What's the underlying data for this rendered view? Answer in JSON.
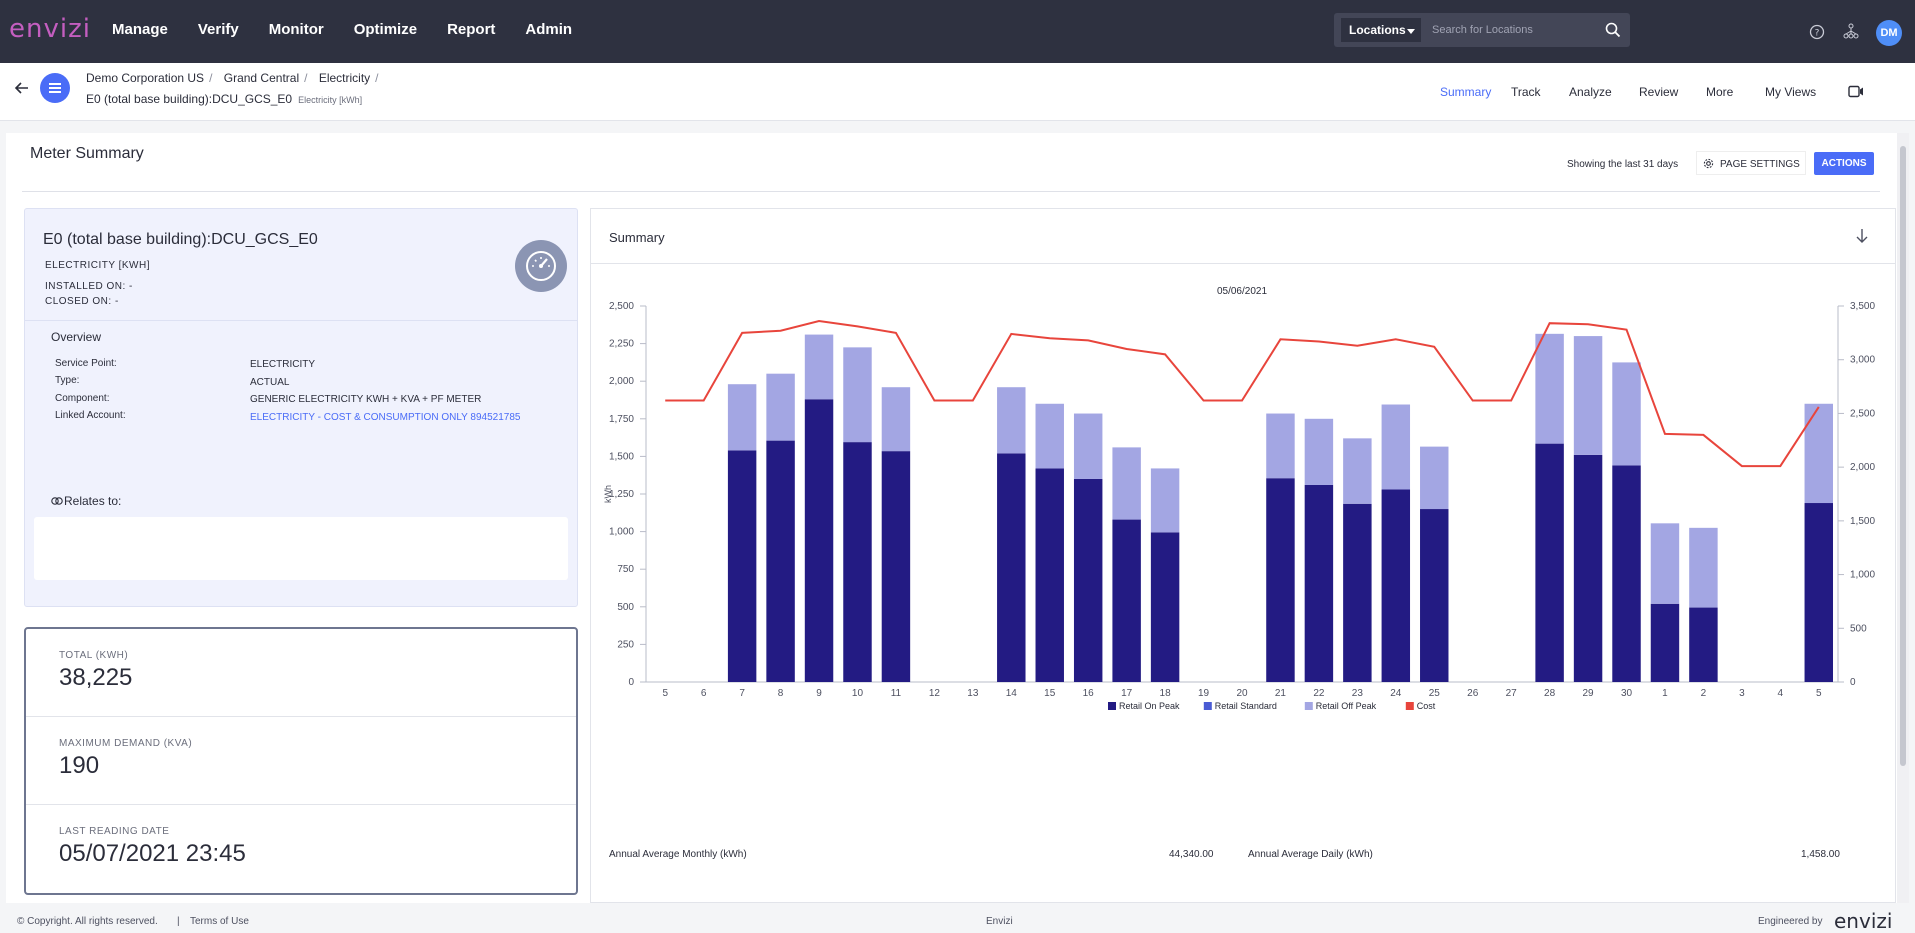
{
  "app": {
    "logo": "envizi",
    "nav": [
      "Manage",
      "Verify",
      "Monitor",
      "Optimize",
      "Report",
      "Admin"
    ],
    "location_select": "Locations",
    "search_placeholder": "Search for Locations",
    "avatar": "DM"
  },
  "breadcrumb": {
    "items": [
      "Demo Corporation US",
      "Grand Central",
      "Electricity"
    ],
    "meter": "E0 (total base building):DCU_GCS_E0",
    "meter_unit": "Electricity [kWh]"
  },
  "tabs": [
    "Summary",
    "Track",
    "Analyze",
    "Review",
    "More",
    "My Views"
  ],
  "page": {
    "title": "Meter Summary",
    "showing": "Showing the last 31 days",
    "page_settings": "PAGE SETTINGS",
    "actions": "ACTIONS"
  },
  "meter_card": {
    "title": "E0 (total base building):DCU_GCS_E0",
    "type": "ELECTRICITY [KWH]",
    "installed": "INSTALLED ON: -",
    "closed": "CLOSED ON: -",
    "overview_title": "Overview",
    "overview": [
      {
        "label": "Service Point:",
        "value": "ELECTRICITY"
      },
      {
        "label": "Type:",
        "value": "ACTUAL"
      },
      {
        "label": "Component:",
        "value": "GENERIC ELECTRICITY KWH + KVA + PF METER"
      },
      {
        "label": "Linked Account:",
        "value": "ELECTRICITY - COST & CONSUMPTION ONLY 894521785"
      }
    ],
    "relates_to": "Relates to:"
  },
  "stats": [
    {
      "label": "TOTAL (KWH)",
      "value": "38,225"
    },
    {
      "label": "MAXIMUM DEMAND (KVA)",
      "value": "190"
    },
    {
      "label": "LAST READING DATE",
      "value": "05/07/2021 23:45"
    }
  ],
  "summary": {
    "title": "Summary",
    "annual_monthly_label": "Annual Average Monthly (kWh)",
    "annual_monthly_value": "44,340.00",
    "annual_daily_label": "Annual Average Daily (kWh)",
    "annual_daily_value": "1,458.00"
  },
  "chart_data": {
    "type": "bar",
    "title": "05/06/2021",
    "ylabel": "kWh",
    "ylim": [
      0,
      2500
    ],
    "y2lim": [
      0,
      3500
    ],
    "yticks": [
      "0",
      "250",
      "500",
      "750",
      "1,000",
      "1,250",
      "1,500",
      "1,750",
      "2,000",
      "2,250",
      "2,500"
    ],
    "y2ticks": [
      "0",
      "500",
      "1,000",
      "1,500",
      "2,000",
      "2,500",
      "3,000",
      "3,500"
    ],
    "categories": [
      "5",
      "6",
      "7",
      "8",
      "9",
      "10",
      "11",
      "12",
      "13",
      "14",
      "15",
      "16",
      "17",
      "18",
      "19",
      "20",
      "21",
      "22",
      "23",
      "24",
      "25",
      "26",
      "27",
      "28",
      "29",
      "30",
      "1",
      "2",
      "3",
      "4",
      "5"
    ],
    "legend_position": "bottom",
    "series": [
      {
        "name": "Retail On Peak",
        "color": "#231b83",
        "values": [
          0,
          0,
          1540,
          1605,
          1880,
          1595,
          1535,
          0,
          0,
          1520,
          1420,
          1350,
          1080,
          995,
          0,
          0,
          1355,
          1310,
          1185,
          1280,
          1150,
          0,
          0,
          1585,
          1510,
          1440,
          520,
          495,
          0,
          0,
          1190
        ]
      },
      {
        "name": "Retail Standard",
        "color": "#4a5bd4",
        "values": [
          0,
          0,
          0,
          0,
          0,
          0,
          0,
          0,
          0,
          0,
          0,
          0,
          0,
          0,
          0,
          0,
          0,
          0,
          0,
          0,
          0,
          0,
          0,
          0,
          0,
          0,
          0,
          0,
          0,
          0,
          0
        ]
      },
      {
        "name": "Retail Off Peak",
        "color": "#a3a6e3",
        "values": [
          0,
          0,
          440,
          445,
          430,
          630,
          425,
          0,
          0,
          440,
          430,
          435,
          480,
          425,
          0,
          0,
          430,
          440,
          435,
          565,
          415,
          0,
          0,
          730,
          790,
          685,
          535,
          530,
          0,
          0,
          660
        ]
      },
      {
        "name": "Cost",
        "color": "#e8453c",
        "axis": "right",
        "values": [
          2620,
          2620,
          3250,
          3270,
          3360,
          3310,
          3250,
          2620,
          2620,
          3240,
          3200,
          3180,
          3100,
          3050,
          2620,
          2620,
          3190,
          3170,
          3130,
          3190,
          3120,
          2620,
          2620,
          3340,
          3330,
          3280,
          2310,
          2300,
          2010,
          2010,
          2560
        ]
      }
    ]
  },
  "footer": {
    "copyright": "© Copyright. All rights reserved.",
    "separator": "|",
    "terms": "Terms of Use",
    "brand": "Envizi",
    "engineered": "Engineered by",
    "eng_logo": "envizi"
  }
}
